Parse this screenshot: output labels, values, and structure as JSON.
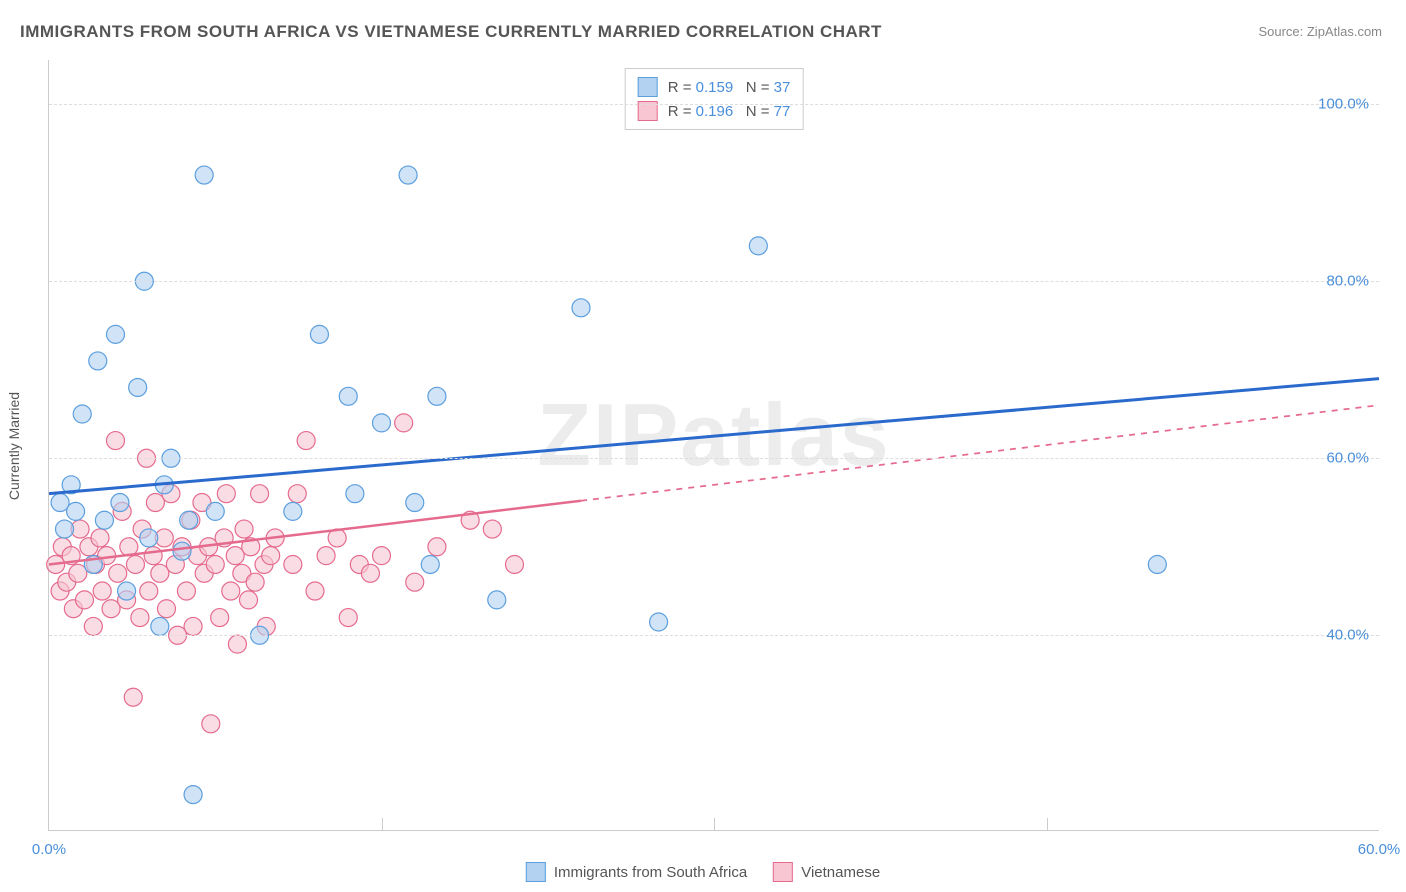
{
  "title": "IMMIGRANTS FROM SOUTH AFRICA VS VIETNAMESE CURRENTLY MARRIED CORRELATION CHART",
  "source": "Source: ZipAtlas.com",
  "watermark": "ZIPatlas",
  "chart": {
    "type": "scatter",
    "yaxis_label": "Currently Married",
    "xlim": [
      0,
      60
    ],
    "ylim": [
      18,
      105
    ],
    "xticks": [
      0,
      60
    ],
    "xtick_labels": [
      "0.0%",
      "60.0%"
    ],
    "yticks": [
      40,
      60,
      80,
      100
    ],
    "ytick_labels": [
      "40.0%",
      "60.0%",
      "80.0%",
      "100.0%"
    ],
    "x_gridlines_at": [
      15,
      30,
      45
    ],
    "marker_radius": 9,
    "marker_stroke_width": 1.2,
    "background_color": "#ffffff",
    "grid_color": "#dddddd",
    "axis_color": "#cccccc",
    "tick_label_color": "#4a8fd9",
    "label_color": "#555555"
  },
  "series": [
    {
      "name": "Immigrants from South Africa",
      "fill_color": "#b3d1f0",
      "stroke_color": "#5c9fde",
      "fill_opacity": 0.6,
      "regression": {
        "color": "#2a6acc",
        "width": 3,
        "y_at_x0": 56,
        "y_at_xmax": 69,
        "solid_until_x": 60
      },
      "stats": {
        "R": "0.159",
        "N": "37"
      },
      "points": [
        [
          0.5,
          55
        ],
        [
          0.7,
          52
        ],
        [
          1.0,
          57
        ],
        [
          1.2,
          54
        ],
        [
          1.5,
          65
        ],
        [
          2.0,
          48
        ],
        [
          2.2,
          71
        ],
        [
          2.5,
          53
        ],
        [
          3.0,
          74
        ],
        [
          3.2,
          55
        ],
        [
          3.5,
          45
        ],
        [
          4.0,
          68
        ],
        [
          4.3,
          80
        ],
        [
          4.5,
          51
        ],
        [
          5.0,
          41
        ],
        [
          5.2,
          57
        ],
        [
          5.5,
          60
        ],
        [
          6.0,
          49.5
        ],
        [
          6.3,
          53
        ],
        [
          7.0,
          92
        ],
        [
          7.5,
          54
        ],
        [
          9.5,
          40
        ],
        [
          11.0,
          54
        ],
        [
          12.2,
          74
        ],
        [
          13.5,
          67
        ],
        [
          13.8,
          56
        ],
        [
          15.0,
          64
        ],
        [
          16.2,
          92
        ],
        [
          16.5,
          55
        ],
        [
          17.2,
          48
        ],
        [
          17.5,
          67
        ],
        [
          20.2,
          44
        ],
        [
          24.0,
          77
        ],
        [
          27.5,
          41.5
        ],
        [
          32.0,
          84
        ],
        [
          50.0,
          48
        ],
        [
          6.5,
          22
        ]
      ]
    },
    {
      "name": "Vietnamese",
      "fill_color": "#f7c6d2",
      "stroke_color": "#e56b8e",
      "fill_opacity": 0.6,
      "regression": {
        "color": "#e56b8e",
        "width": 2.5,
        "y_at_x0": 48,
        "y_at_xmax": 66,
        "solid_until_x": 24
      },
      "stats": {
        "R": "0.196",
        "N": "77"
      },
      "points": [
        [
          0.3,
          48
        ],
        [
          0.5,
          45
        ],
        [
          0.6,
          50
        ],
        [
          0.8,
          46
        ],
        [
          1.0,
          49
        ],
        [
          1.1,
          43
        ],
        [
          1.3,
          47
        ],
        [
          1.4,
          52
        ],
        [
          1.6,
          44
        ],
        [
          1.8,
          50
        ],
        [
          2.0,
          41
        ],
        [
          2.1,
          48
        ],
        [
          2.3,
          51
        ],
        [
          2.4,
          45
        ],
        [
          2.6,
          49
        ],
        [
          2.8,
          43
        ],
        [
          3.0,
          62
        ],
        [
          3.1,
          47
        ],
        [
          3.3,
          54
        ],
        [
          3.5,
          44
        ],
        [
          3.6,
          50
        ],
        [
          3.8,
          33
        ],
        [
          3.9,
          48
        ],
        [
          4.1,
          42
        ],
        [
          4.2,
          52
        ],
        [
          4.4,
          60
        ],
        [
          4.5,
          45
        ],
        [
          4.7,
          49
        ],
        [
          4.8,
          55
        ],
        [
          5.0,
          47
        ],
        [
          5.2,
          51
        ],
        [
          5.3,
          43
        ],
        [
          5.5,
          56
        ],
        [
          5.7,
          48
        ],
        [
          5.8,
          40
        ],
        [
          6.0,
          50
        ],
        [
          6.2,
          45
        ],
        [
          6.4,
          53
        ],
        [
          6.5,
          41
        ],
        [
          6.7,
          49
        ],
        [
          6.9,
          55
        ],
        [
          7.0,
          47
        ],
        [
          7.2,
          50
        ],
        [
          7.3,
          30
        ],
        [
          7.5,
          48
        ],
        [
          7.7,
          42
        ],
        [
          7.9,
          51
        ],
        [
          8.0,
          56
        ],
        [
          8.2,
          45
        ],
        [
          8.4,
          49
        ],
        [
          8.5,
          39
        ],
        [
          8.7,
          47
        ],
        [
          8.8,
          52
        ],
        [
          9.0,
          44
        ],
        [
          9.1,
          50
        ],
        [
          9.3,
          46
        ],
        [
          9.5,
          56
        ],
        [
          9.7,
          48
        ],
        [
          9.8,
          41
        ],
        [
          10.0,
          49
        ],
        [
          10.2,
          51
        ],
        [
          11.0,
          48
        ],
        [
          11.2,
          56
        ],
        [
          11.6,
          62
        ],
        [
          12.0,
          45
        ],
        [
          12.5,
          49
        ],
        [
          13.0,
          51
        ],
        [
          13.5,
          42
        ],
        [
          14.0,
          48
        ],
        [
          14.5,
          47
        ],
        [
          15.0,
          49
        ],
        [
          16.0,
          64
        ],
        [
          16.5,
          46
        ],
        [
          17.5,
          50
        ],
        [
          19.0,
          53
        ],
        [
          21.0,
          48
        ],
        [
          20.0,
          52
        ]
      ]
    }
  ],
  "legend_bottom": [
    {
      "label": "Immigrants from South Africa",
      "fill": "#b3d1f0",
      "stroke": "#5c9fde"
    },
    {
      "label": "Vietnamese",
      "fill": "#f7c6d2",
      "stroke": "#e56b8e"
    }
  ],
  "legend_top_labels": {
    "R": "R =",
    "N": "N ="
  }
}
